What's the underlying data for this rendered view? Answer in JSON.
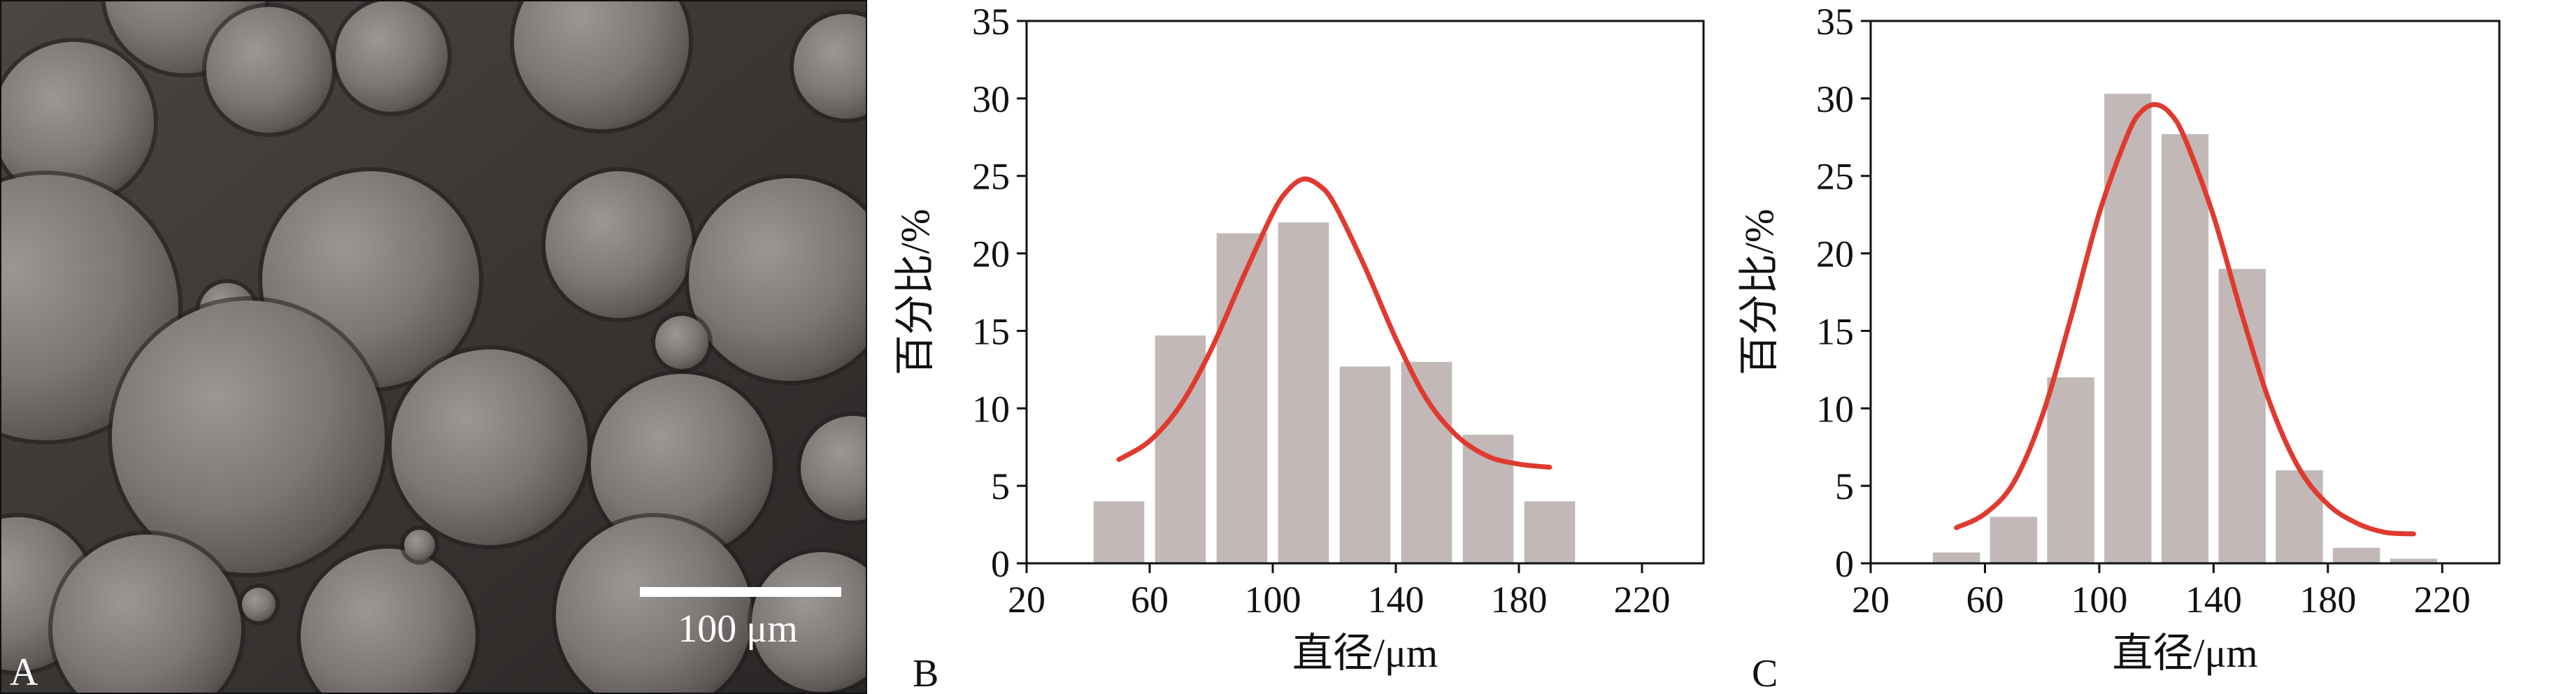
{
  "panels": {
    "a": {
      "letter": "A",
      "scale_bar_label": "100 μm"
    },
    "b": {
      "letter": "B"
    },
    "c": {
      "letter": "C"
    }
  },
  "colors": {
    "bar": "#c1b8b7",
    "curve": "#e03a2f",
    "axis": "#111111"
  },
  "chart_data": [
    {
      "type": "bar",
      "panel": "B",
      "xlabel": "直径/μm",
      "ylabel": "百分比/%",
      "xlim": [
        20,
        240
      ],
      "ylim": [
        0,
        35
      ],
      "xticks": [
        20,
        60,
        100,
        140,
        180,
        220
      ],
      "yticks": [
        0,
        5,
        10,
        15,
        20,
        25,
        30,
        35
      ],
      "bar_width": 16.5,
      "bars": [
        {
          "x": 50,
          "value": 4.0
        },
        {
          "x": 70,
          "value": 14.7
        },
        {
          "x": 90,
          "value": 21.3
        },
        {
          "x": 110,
          "value": 22.0
        },
        {
          "x": 130,
          "value": 12.7
        },
        {
          "x": 150,
          "value": 13.0
        },
        {
          "x": 170,
          "value": 8.3
        },
        {
          "x": 190,
          "value": 4.0
        }
      ],
      "curve": {
        "x": [
          50,
          60,
          70,
          80,
          90,
          100,
          105,
          110,
          115,
          120,
          130,
          140,
          150,
          160,
          170,
          180,
          190
        ],
        "y": [
          6.7,
          7.9,
          10.2,
          13.8,
          18.3,
          22.6,
          24.1,
          24.8,
          24.4,
          23.2,
          19.1,
          14.5,
          10.6,
          8.2,
          6.9,
          6.4,
          6.2
        ]
      }
    },
    {
      "type": "bar",
      "panel": "C",
      "xlabel": "直径/μm",
      "ylabel": "百分比/%",
      "xlim": [
        20,
        240
      ],
      "ylim": [
        0,
        35
      ],
      "xticks": [
        20,
        60,
        100,
        140,
        180,
        220
      ],
      "yticks": [
        0,
        5,
        10,
        15,
        20,
        25,
        30,
        35
      ],
      "bar_width": 16.5,
      "bars": [
        {
          "x": 50,
          "value": 0.7
        },
        {
          "x": 70,
          "value": 3.0
        },
        {
          "x": 90,
          "value": 12.0
        },
        {
          "x": 110,
          "value": 30.3
        },
        {
          "x": 130,
          "value": 27.7
        },
        {
          "x": 150,
          "value": 19.0
        },
        {
          "x": 170,
          "value": 6.0
        },
        {
          "x": 190,
          "value": 1.0
        },
        {
          "x": 210,
          "value": 0.3
        }
      ],
      "curve": {
        "x": [
          50,
          60,
          70,
          80,
          90,
          100,
          110,
          115,
          120,
          125,
          130,
          140,
          150,
          160,
          170,
          180,
          190,
          200,
          210
        ],
        "y": [
          2.3,
          3.2,
          5.2,
          9.5,
          15.8,
          22.6,
          27.7,
          29.2,
          29.6,
          29.0,
          27.4,
          22.4,
          16.0,
          10.2,
          6.1,
          3.8,
          2.6,
          2.0,
          1.9
        ]
      }
    }
  ]
}
